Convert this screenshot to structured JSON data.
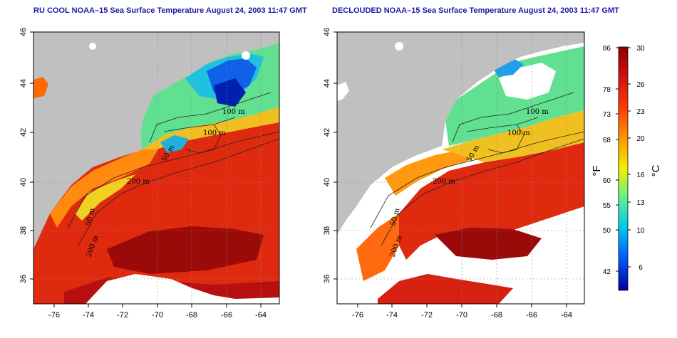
{
  "maps": [
    {
      "title": "RU COOL NOAA–15 Sea Surface Temperature August 24, 2003 11:47 GMT",
      "contour_labels": [
        "100 m",
        "100 m",
        "50 m",
        "200 m",
        "50 m",
        "200 m"
      ]
    },
    {
      "title": "DECLOUDED NOAA–15 Sea Surface Temperature August 24, 2003 11:47 GMT",
      "contour_labels": [
        "100 m",
        "100 m",
        "50 m",
        "200 m",
        "50 m",
        "200 m"
      ]
    }
  ],
  "axes": {
    "x_ticks": [
      "-76",
      "-74",
      "-72",
      "-70",
      "-68",
      "-66",
      "-64"
    ],
    "y_ticks": [
      "46",
      "44",
      "42",
      "40",
      "38",
      "36"
    ]
  },
  "colorbar": {
    "fahrenheit_label": "°F",
    "celsius_label": "°C",
    "fahrenheit_ticks": [
      "86",
      "78",
      "73",
      "68",
      "60",
      "55",
      "50",
      "42"
    ],
    "celsius_ticks": [
      "30",
      "26",
      "23",
      "20",
      "16",
      "13",
      "10",
      "6"
    ]
  },
  "colors": {
    "land": "#c0c0c0",
    "title": "#1a1aa0",
    "warm": "#c81010",
    "cool": "#1030d0"
  }
}
